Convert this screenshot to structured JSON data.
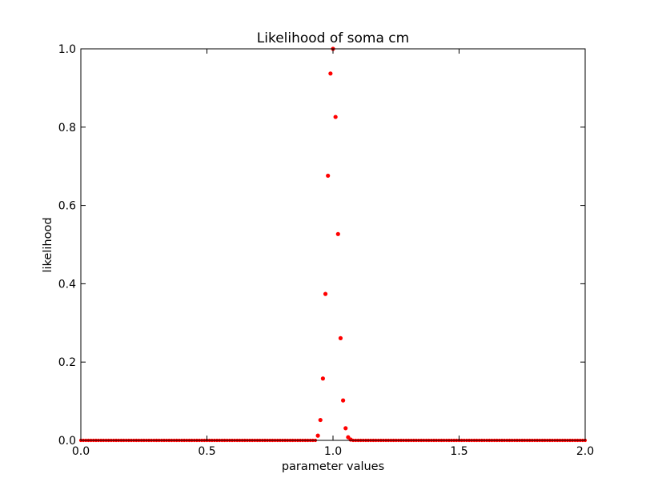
{
  "chart_data": {
    "type": "scatter",
    "title": "Likelihood of soma cm",
    "xlabel": "parameter values",
    "ylabel": "likelihood",
    "xlim": [
      0.0,
      2.0
    ],
    "ylim": [
      0.0,
      1.0
    ],
    "xticks": [
      "0.0",
      "0.5",
      "1.0",
      "1.5",
      "2.0"
    ],
    "yticks": [
      "0.0",
      "0.2",
      "0.4",
      "0.6",
      "0.8",
      "1.0"
    ],
    "grid": false,
    "marker_color": "#ff0000",
    "series": [
      {
        "x_start": 0.0,
        "x_end": 2.0,
        "baseline_count": 201,
        "peak_points": [
          {
            "x": 0.94,
            "y": 0.012
          },
          {
            "x": 0.95,
            "y": 0.052
          },
          {
            "x": 0.96,
            "y": 0.158
          },
          {
            "x": 0.97,
            "y": 0.374
          },
          {
            "x": 0.98,
            "y": 0.676
          },
          {
            "x": 0.99,
            "y": 0.937
          },
          {
            "x": 1.0,
            "y": 1.0
          },
          {
            "x": 1.01,
            "y": 0.826
          },
          {
            "x": 1.02,
            "y": 0.527
          },
          {
            "x": 1.03,
            "y": 0.261
          },
          {
            "x": 1.04,
            "y": 0.102
          },
          {
            "x": 1.05,
            "y": 0.031
          },
          {
            "x": 1.06,
            "y": 0.008
          },
          {
            "x": 1.07,
            "y": 0.002
          }
        ]
      }
    ]
  }
}
